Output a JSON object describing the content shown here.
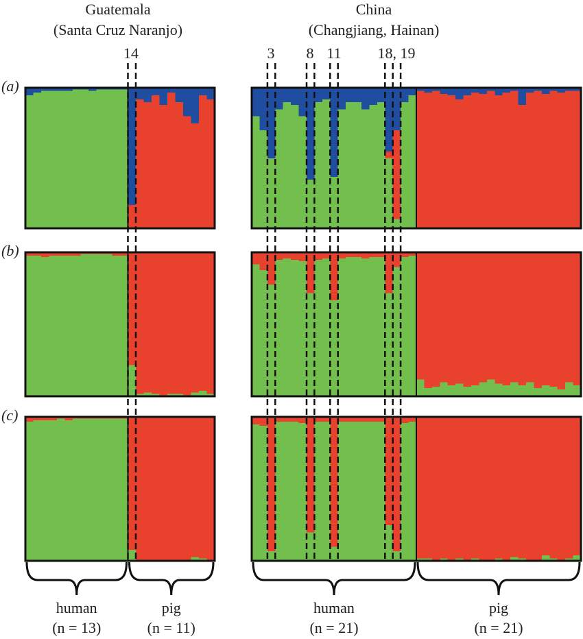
{
  "chart_data": {
    "type": "structure",
    "columns": [
      {
        "title": "Guatemala",
        "subtitle": "(Santa Cruz Naranjo)",
        "groups": [
          {
            "label": "human",
            "n": "(n = 13)"
          },
          {
            "label": "pig",
            "n": "(n = 11)"
          }
        ]
      },
      {
        "title": "China",
        "subtitle": "(Changjiang, Hainan)",
        "groups": [
          {
            "label": "human",
            "n": "(n = 21)"
          },
          {
            "label": "pig",
            "n": "(n = 21)"
          }
        ]
      }
    ],
    "highlight_labels": [
      "14",
      "3",
      "8",
      "11",
      "18, 19"
    ],
    "panels": [
      {
        "label": "(a)",
        "blocks": [
          {
            "series": [
              {
                "color": "#72bf4e",
                "values": [
                  0.95,
                  0.97,
                  0.98,
                  0.98,
                  0.98,
                  0.98,
                  0.99,
                  0.99,
                  0.98,
                  0.99,
                  0.99,
                  0.99,
                  0.99
                ]
              },
              {
                "color": "#1f4ea1",
                "values": [
                  0.05,
                  0.03,
                  0.02,
                  0.02,
                  0.02,
                  0.02,
                  0.01,
                  0.01,
                  0.02,
                  0.01,
                  0.01,
                  0.01,
                  0.01
                ]
              }
            ]
          },
          {
            "series": [
              {
                "color": "#e8412e",
                "values": [
                  0.17,
                  0.92,
                  0.9,
                  0.95,
                  0.88,
                  0.97,
                  0.9,
                  0.8,
                  0.75,
                  0.95,
                  0.92
                ]
              },
              {
                "color": "#1f4ea1",
                "values": [
                  0.83,
                  0.08,
                  0.1,
                  0.05,
                  0.12,
                  0.03,
                  0.1,
                  0.2,
                  0.25,
                  0.05,
                  0.08
                ]
              }
            ]
          },
          {
            "series": [
              {
                "color": "#72bf4e",
                "values": [
                  0.8,
                  0.7,
                  0.5,
                  0.85,
                  0.9,
                  0.88,
                  0.8,
                  0.35,
                  0.9,
                  0.92,
                  0.37,
                  0.85,
                  0.9,
                  0.9,
                  0.85,
                  0.88,
                  0.9,
                  0.5,
                  0.07,
                  0.9,
                  0.95
                ]
              },
              {
                "color": "#e8412e",
                "values": [
                  0,
                  0,
                  0,
                  0,
                  0,
                  0,
                  0,
                  0,
                  0,
                  0,
                  0,
                  0,
                  0,
                  0,
                  0,
                  0,
                  0,
                  0.05,
                  0.63,
                  0,
                  0
                ]
              },
              {
                "color": "#1f4ea1",
                "values": [
                  0.2,
                  0.3,
                  0.5,
                  0.15,
                  0.1,
                  0.12,
                  0.2,
                  0.65,
                  0.1,
                  0.08,
                  0.63,
                  0.15,
                  0.1,
                  0.1,
                  0.15,
                  0.12,
                  0.1,
                  0.45,
                  0.3,
                  0.1,
                  0.05
                ]
              }
            ]
          },
          {
            "series": [
              {
                "color": "#e8412e",
                "values": [
                  0.98,
                  0.97,
                  0.98,
                  0.96,
                  0.95,
                  0.92,
                  0.95,
                  0.97,
                  0.96,
                  0.98,
                  0.95,
                  0.97,
                  0.98,
                  0.88,
                  0.97,
                  0.98,
                  0.96,
                  0.98,
                  0.97,
                  0.98,
                  0.98
                ]
              },
              {
                "color": "#1f4ea1",
                "values": [
                  0.02,
                  0.03,
                  0.02,
                  0.04,
                  0.05,
                  0.08,
                  0.05,
                  0.03,
                  0.04,
                  0.02,
                  0.05,
                  0.03,
                  0.02,
                  0.12,
                  0.03,
                  0.02,
                  0.04,
                  0.02,
                  0.03,
                  0.02,
                  0.02
                ]
              }
            ]
          }
        ]
      },
      {
        "label": "(b)",
        "blocks": [
          {
            "series": [
              {
                "color": "#72bf4e",
                "values": [
                  0.98,
                  0.98,
                  0.97,
                  0.98,
                  0.98,
                  0.98,
                  0.98,
                  0.99,
                  0.99,
                  0.99,
                  0.99,
                  0.98,
                  0.98
                ]
              },
              {
                "color": "#e8412e",
                "values": [
                  0.02,
                  0.02,
                  0.03,
                  0.02,
                  0.02,
                  0.02,
                  0.02,
                  0.01,
                  0.01,
                  0.01,
                  0.01,
                  0.02,
                  0.02
                ]
              }
            ]
          },
          {
            "series": [
              {
                "color": "#72bf4e",
                "values": [
                  0.22,
                  0.02,
                  0.03,
                  0.02,
                  0.01,
                  0.02,
                  0.02,
                  0.01,
                  0.03,
                  0.04,
                  0.02
                ]
              },
              {
                "color": "#e8412e",
                "values": [
                  0.78,
                  0.98,
                  0.97,
                  0.98,
                  0.99,
                  0.98,
                  0.98,
                  0.99,
                  0.97,
                  0.96,
                  0.98
                ]
              }
            ]
          },
          {
            "series": [
              {
                "color": "#72bf4e",
                "values": [
                  0.92,
                  0.88,
                  0.78,
                  0.95,
                  0.96,
                  0.95,
                  0.94,
                  0.72,
                  0.95,
                  0.96,
                  0.67,
                  0.96,
                  0.97,
                  0.97,
                  0.96,
                  0.97,
                  0.97,
                  0.72,
                  0.9,
                  0.97,
                  0.98
                ]
              },
              {
                "color": "#e8412e",
                "values": [
                  0.08,
                  0.12,
                  0.22,
                  0.05,
                  0.04,
                  0.05,
                  0.06,
                  0.28,
                  0.05,
                  0.04,
                  0.33,
                  0.04,
                  0.03,
                  0.03,
                  0.04,
                  0.03,
                  0.03,
                  0.28,
                  0.1,
                  0.03,
                  0.02
                ]
              }
            ]
          },
          {
            "series": [
              {
                "color": "#72bf4e",
                "values": [
                  0.12,
                  0.06,
                  0.07,
                  0.1,
                  0.08,
                  0.09,
                  0.07,
                  0.08,
                  0.1,
                  0.12,
                  0.09,
                  0.08,
                  0.1,
                  0.08,
                  0.1,
                  0.06,
                  0.08,
                  0.07,
                  0.05,
                  0.1,
                  0.08
                ]
              },
              {
                "color": "#e8412e",
                "values": [
                  0.88,
                  0.94,
                  0.93,
                  0.9,
                  0.92,
                  0.91,
                  0.93,
                  0.92,
                  0.9,
                  0.88,
                  0.91,
                  0.92,
                  0.9,
                  0.92,
                  0.9,
                  0.94,
                  0.92,
                  0.93,
                  0.95,
                  0.9,
                  0.92
                ]
              }
            ]
          }
        ]
      },
      {
        "label": "(c)",
        "blocks": [
          {
            "series": [
              {
                "color": "#72bf4e",
                "values": [
                  0.97,
                  0.98,
                  0.98,
                  0.98,
                  0.99,
                  0.98,
                  0.99,
                  0.99,
                  0.99,
                  0.99,
                  0.99,
                  0.99,
                  0.99
                ]
              },
              {
                "color": "#e8412e",
                "values": [
                  0.03,
                  0.02,
                  0.02,
                  0.02,
                  0.01,
                  0.02,
                  0.01,
                  0.01,
                  0.01,
                  0.01,
                  0.01,
                  0.01,
                  0.01
                ]
              }
            ]
          },
          {
            "series": [
              {
                "color": "#72bf4e",
                "values": [
                  0.08,
                  0.01,
                  0.01,
                  0.01,
                  0.01,
                  0.01,
                  0.01,
                  0.01,
                  0.03,
                  0.02,
                  0.01
                ]
              },
              {
                "color": "#e8412e",
                "values": [
                  0.92,
                  0.99,
                  0.99,
                  0.99,
                  0.99,
                  0.99,
                  0.99,
                  0.99,
                  0.97,
                  0.98,
                  0.99
                ]
              }
            ]
          },
          {
            "series": [
              {
                "color": "#72bf4e",
                "values": [
                  0.95,
                  0.94,
                  0.07,
                  0.97,
                  0.97,
                  0.97,
                  0.96,
                  0.2,
                  0.97,
                  0.97,
                  0.1,
                  0.97,
                  0.97,
                  0.97,
                  0.97,
                  0.97,
                  0.97,
                  0.25,
                  0.07,
                  0.96,
                  0.97
                ]
              },
              {
                "color": "#e8412e",
                "values": [
                  0.05,
                  0.06,
                  0.93,
                  0.03,
                  0.03,
                  0.03,
                  0.04,
                  0.8,
                  0.03,
                  0.03,
                  0.9,
                  0.03,
                  0.03,
                  0.03,
                  0.03,
                  0.03,
                  0.03,
                  0.75,
                  0.93,
                  0.04,
                  0.03
                ]
              }
            ]
          },
          {
            "series": [
              {
                "color": "#72bf4e",
                "values": [
                  0.02,
                  0.02,
                  0.01,
                  0.02,
                  0.01,
                  0.02,
                  0.01,
                  0.02,
                  0.01,
                  0.01,
                  0.02,
                  0.01,
                  0.03,
                  0.02,
                  0.01,
                  0.01,
                  0.04,
                  0.02,
                  0.01,
                  0.02,
                  0.04
                ]
              },
              {
                "color": "#e8412e",
                "values": [
                  0.98,
                  0.98,
                  0.99,
                  0.98,
                  0.99,
                  0.98,
                  0.99,
                  0.98,
                  0.99,
                  0.99,
                  0.98,
                  0.99,
                  0.97,
                  0.98,
                  0.99,
                  0.99,
                  0.96,
                  0.98,
                  0.99,
                  0.98,
                  0.96
                ]
              }
            ]
          }
        ]
      }
    ]
  }
}
